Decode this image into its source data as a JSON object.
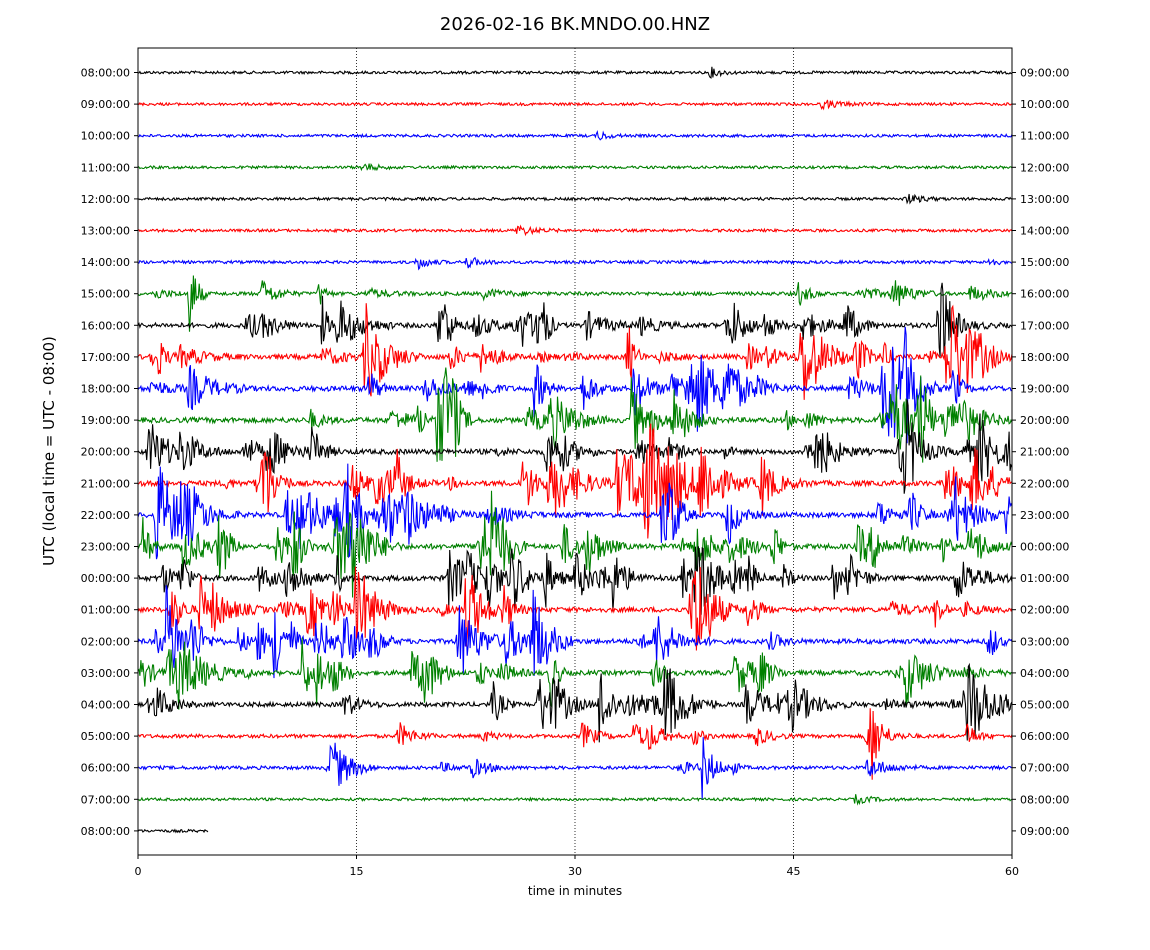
{
  "chart_data": {
    "type": "line",
    "title": "2026-02-16 BK.MNDO.00.HNZ",
    "xlabel": "time in minutes",
    "ylabel": "UTC (local time = UTC - 08:00)",
    "xlim": [
      0,
      60
    ],
    "x_ticks": [
      "0",
      "15",
      "30",
      "45",
      "60"
    ],
    "x_tick_values": [
      0,
      15,
      30,
      45,
      60
    ],
    "vertical_grid": "dotted at 15, 30, 45",
    "left_tick_labels": [
      "08:00:00",
      "09:00:00",
      "10:00:00",
      "11:00:00",
      "12:00:00",
      "13:00:00",
      "14:00:00",
      "15:00:00",
      "16:00:00",
      "17:00:00",
      "18:00:00",
      "19:00:00",
      "20:00:00",
      "21:00:00",
      "22:00:00",
      "23:00:00",
      "00:00:00",
      "01:00:00",
      "02:00:00",
      "03:00:00",
      "04:00:00",
      "05:00:00",
      "06:00:00",
      "07:00:00",
      "08:00:00"
    ],
    "right_tick_labels": [
      "09:00:00",
      "10:00:00",
      "11:00:00",
      "12:00:00",
      "13:00:00",
      "14:00:00",
      "15:00:00",
      "16:00:00",
      "17:00:00",
      "18:00:00",
      "19:00:00",
      "20:00:00",
      "21:00:00",
      "22:00:00",
      "23:00:00",
      "00:00:00",
      "01:00:00",
      "02:00:00",
      "03:00:00",
      "04:00:00",
      "05:00:00",
      "06:00:00",
      "07:00:00",
      "08:00:00",
      "09:00:00"
    ],
    "trace_colors": [
      "#000000",
      "#ff0000",
      "#0000ff",
      "#008000"
    ],
    "trace_end_minutes": [
      60,
      60,
      60,
      60,
      60,
      60,
      60,
      60,
      60,
      60,
      60,
      60,
      60,
      60,
      60,
      60,
      60,
      60,
      60,
      60,
      60,
      60,
      60,
      60,
      4.8
    ],
    "activity_level_per_hour": [
      0.05,
      0.03,
      0.05,
      0.03,
      0.05,
      0.04,
      0.1,
      0.35,
      0.7,
      0.8,
      0.85,
      0.85,
      0.8,
      0.85,
      0.85,
      0.85,
      0.9,
      0.75,
      0.75,
      0.7,
      0.6,
      0.35,
      0.25,
      0.02,
      0.05
    ]
  }
}
